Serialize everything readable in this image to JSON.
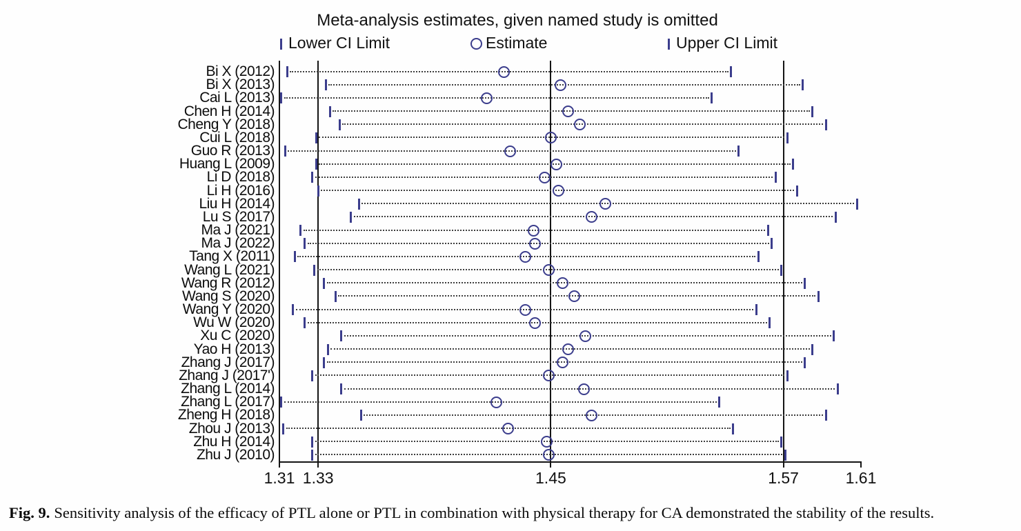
{
  "header": {
    "title": "Meta-analysis estimates, given named study is omitted",
    "legend": {
      "lower_label": "Lower CI Limit",
      "estimate_label": "Estimate",
      "upper_label": "Upper CI Limit"
    }
  },
  "caption": {
    "fig_label": "Fig. 9.",
    "text": "Sensitivity analysis of the efficacy of PTL alone or PTL in combination with physical therapy for CA demonstrated the stability of the results."
  },
  "colors": {
    "marker_blue": "#3b3d8c",
    "axis_black": "#141414",
    "dot_gray": "#3d3d3d"
  },
  "chart_data": {
    "type": "scatter",
    "subtype": "leave-one-out sensitivity forest plot",
    "title": "Meta-analysis estimates, given named study is omitted",
    "legend_entries": [
      "Lower CI Limit",
      "Estimate",
      "Upper CI Limit"
    ],
    "legend_position": "top",
    "xlim": [
      1.31,
      1.61
    ],
    "x_tick_labels": [
      "1.31",
      "1.33",
      "1.45",
      "1.57",
      "1.61"
    ],
    "x_tick_values": [
      1.31,
      1.33,
      1.45,
      1.57,
      1.61
    ],
    "reference_line_values": [
      1.33,
      1.45,
      1.57
    ],
    "grid": false,
    "studies": [
      {
        "label": "Bi X (2012)",
        "lower": 1.314,
        "estimate": 1.426,
        "upper": 1.543
      },
      {
        "label": "Bi X (2013)",
        "lower": 1.334,
        "estimate": 1.455,
        "upper": 1.58
      },
      {
        "label": "Cai L (2013)",
        "lower": 1.311,
        "estimate": 1.417,
        "upper": 1.533
      },
      {
        "label": "Chen H (2014)",
        "lower": 1.336,
        "estimate": 1.459,
        "upper": 1.585
      },
      {
        "label": "Cheng Y (2018)",
        "lower": 1.341,
        "estimate": 1.465,
        "upper": 1.592
      },
      {
        "label": "Cui L (2018)",
        "lower": 1.329,
        "estimate": 1.45,
        "upper": 1.572
      },
      {
        "label": "Guo R (2013)",
        "lower": 1.313,
        "estimate": 1.429,
        "upper": 1.547
      },
      {
        "label": "Huang L (2009)",
        "lower": 1.329,
        "estimate": 1.453,
        "upper": 1.575
      },
      {
        "label": "Li D (2018)",
        "lower": 1.327,
        "estimate": 1.447,
        "upper": 1.566
      },
      {
        "label": "Li H (2016)",
        "lower": 1.33,
        "estimate": 1.454,
        "upper": 1.577
      },
      {
        "label": "Liu H (2014)",
        "lower": 1.351,
        "estimate": 1.478,
        "upper": 1.608
      },
      {
        "label": "Lu S (2017)",
        "lower": 1.347,
        "estimate": 1.471,
        "upper": 1.597
      },
      {
        "label": "Ma J (2021)",
        "lower": 1.321,
        "estimate": 1.441,
        "upper": 1.562
      },
      {
        "label": "Ma J (2022)",
        "lower": 1.323,
        "estimate": 1.442,
        "upper": 1.564
      },
      {
        "label": "Tang X (2011)",
        "lower": 1.318,
        "estimate": 1.437,
        "upper": 1.557
      },
      {
        "label": "Wang L (2021)",
        "lower": 1.328,
        "estimate": 1.449,
        "upper": 1.569
      },
      {
        "label": "Wang R (2012)",
        "lower": 1.333,
        "estimate": 1.456,
        "upper": 1.581
      },
      {
        "label": "Wang S (2020)",
        "lower": 1.339,
        "estimate": 1.462,
        "upper": 1.588
      },
      {
        "label": "Wang Y (2020)",
        "lower": 1.317,
        "estimate": 1.437,
        "upper": 1.556
      },
      {
        "label": "Wu W (2020)",
        "lower": 1.323,
        "estimate": 1.442,
        "upper": 1.563
      },
      {
        "label": "Xu C (2020)",
        "lower": 1.342,
        "estimate": 1.468,
        "upper": 1.596
      },
      {
        "label": "Yao H (2013)",
        "lower": 1.335,
        "estimate": 1.459,
        "upper": 1.585
      },
      {
        "label": "Zhang J (2017)",
        "lower": 1.333,
        "estimate": 1.456,
        "upper": 1.581
      },
      {
        "label": "Zhang J (2017')",
        "lower": 1.327,
        "estimate": 1.449,
        "upper": 1.572
      },
      {
        "label": "Zhang L (2014)",
        "lower": 1.342,
        "estimate": 1.467,
        "upper": 1.598
      },
      {
        "label": "Zhang L (2017)",
        "lower": 1.311,
        "estimate": 1.422,
        "upper": 1.537
      },
      {
        "label": "Zheng H (2018)",
        "lower": 1.352,
        "estimate": 1.471,
        "upper": 1.592
      },
      {
        "label": "Zhou J (2013)",
        "lower": 1.312,
        "estimate": 1.428,
        "upper": 1.544
      },
      {
        "label": "Zhu H (2014)",
        "lower": 1.327,
        "estimate": 1.448,
        "upper": 1.569
      },
      {
        "label": "Zhu J (2010)",
        "lower": 1.327,
        "estimate": 1.449,
        "upper": 1.571
      }
    ]
  }
}
